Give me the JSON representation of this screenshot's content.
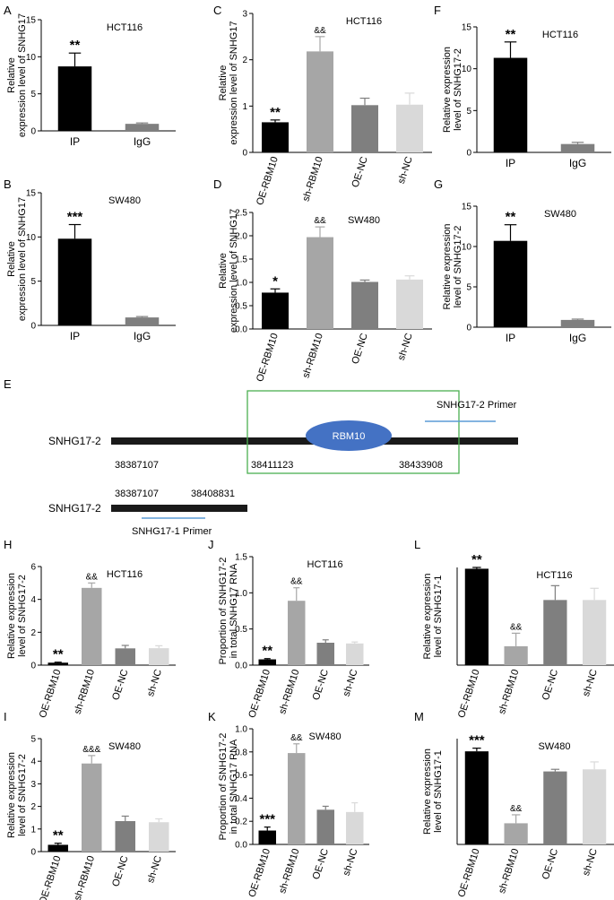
{
  "colors": {
    "black": "#000000",
    "light_gray": "#a6a6a6",
    "dark_gray": "#7f7f7f",
    "very_light_gray": "#d9d9d9",
    "green_box": "#4caf50",
    "rbm10_blue": "#4472c4",
    "primer_blue": "#5b9bd5",
    "gene_bar": "#1a1a1a"
  },
  "chart_data": [
    {
      "id": "A",
      "panel_label": "A",
      "type": "bar",
      "title": "HCT116",
      "ylabel": [
        "Relative",
        "expression level of SNHG17"
      ],
      "categories": [
        "IP",
        "IgG"
      ],
      "values": [
        8.7,
        0.95
      ],
      "errors": [
        1.8,
        0.12
      ],
      "colors": [
        "#000000",
        "#7f7f7f"
      ],
      "annotations": [
        "**",
        ""
      ],
      "ylim": [
        0,
        15
      ],
      "yticks": [
        "0",
        "5",
        "10",
        "15"
      ],
      "rotate_xticks": false
    },
    {
      "id": "B",
      "panel_label": "B",
      "type": "bar",
      "title": "SW480",
      "ylabel": [
        "Relative",
        "expression level of SNHG17"
      ],
      "categories": [
        "IP",
        "IgG"
      ],
      "values": [
        9.8,
        0.9
      ],
      "errors": [
        1.6,
        0.1
      ],
      "colors": [
        "#000000",
        "#7f7f7f"
      ],
      "annotations": [
        "***",
        ""
      ],
      "ylim": [
        0,
        15
      ],
      "yticks": [
        "0",
        "5",
        "10",
        "15"
      ],
      "rotate_xticks": false
    },
    {
      "id": "C",
      "panel_label": "C",
      "type": "bar",
      "title": "HCT116",
      "ylabel": [
        "Relative",
        "expression level of SNHG17"
      ],
      "categories": [
        "OE-RBM10",
        "sh-RBM10",
        "OE-NC",
        "sh-NC"
      ],
      "values": [
        0.65,
        2.18,
        1.02,
        1.03
      ],
      "errors": [
        0.05,
        0.32,
        0.15,
        0.25
      ],
      "colors": [
        "#000000",
        "#a6a6a6",
        "#7f7f7f",
        "#d9d9d9"
      ],
      "annotations": [
        "**",
        "&&",
        "",
        ""
      ],
      "ylim": [
        0,
        3
      ],
      "yticks": [
        "0",
        "1",
        "2",
        "3"
      ],
      "rotate_xticks": true
    },
    {
      "id": "D",
      "panel_label": "D",
      "type": "bar",
      "title": "SW480",
      "ylabel": [
        "Relative",
        "expression level of SNHG17"
      ],
      "categories": [
        "OE-RBM10",
        "sh-RBM10",
        "OE-NC",
        "sh-NC"
      ],
      "values": [
        0.78,
        1.97,
        1.01,
        1.06
      ],
      "errors": [
        0.08,
        0.22,
        0.04,
        0.08
      ],
      "colors": [
        "#000000",
        "#a6a6a6",
        "#7f7f7f",
        "#d9d9d9"
      ],
      "annotations": [
        "*",
        "&&",
        "",
        ""
      ],
      "ylim": [
        0,
        2.5
      ],
      "yticks": [
        "0.0",
        "0.5",
        "1.0",
        "1.5",
        "2.0",
        "2.5"
      ],
      "rotate_xticks": true
    },
    {
      "id": "F",
      "panel_label": "F",
      "type": "bar",
      "title": "HCT116",
      "ylabel": [
        "Relative expression",
        "level of SNHG17-2"
      ],
      "categories": [
        "IP",
        "IgG"
      ],
      "values": [
        11.3,
        1.0
      ],
      "errors": [
        1.9,
        0.2
      ],
      "colors": [
        "#000000",
        "#7f7f7f"
      ],
      "annotations": [
        "**",
        ""
      ],
      "ylim": [
        0,
        15
      ],
      "yticks": [
        "0",
        "5",
        "10",
        "15"
      ],
      "rotate_xticks": false
    },
    {
      "id": "G",
      "panel_label": "G",
      "type": "bar",
      "title": "SW480",
      "ylabel": [
        "Relative expression",
        "level of SNHG17-2"
      ],
      "categories": [
        "IP",
        "IgG"
      ],
      "values": [
        10.7,
        0.9
      ],
      "errors": [
        2.0,
        0.1
      ],
      "colors": [
        "#000000",
        "#7f7f7f"
      ],
      "annotations": [
        "**",
        ""
      ],
      "ylim": [
        0,
        15
      ],
      "yticks": [
        "0",
        "5",
        "10",
        "15"
      ],
      "rotate_xticks": false
    },
    {
      "id": "H",
      "panel_label": "H",
      "type": "bar",
      "title": "HCT116",
      "ylabel": [
        "Relative expression",
        "level of SNHG17-2"
      ],
      "categories": [
        "OE-RBM10",
        "sh-RBM10",
        "OE-NC",
        "sh-NC"
      ],
      "values": [
        0.15,
        4.7,
        1.02,
        1.03
      ],
      "errors": [
        0.03,
        0.3,
        0.18,
        0.15
      ],
      "colors": [
        "#000000",
        "#a6a6a6",
        "#7f7f7f",
        "#d9d9d9"
      ],
      "annotations": [
        "**",
        "&&",
        "",
        ""
      ],
      "ylim": [
        0,
        6
      ],
      "yticks": [
        "0",
        "2",
        "4",
        "6"
      ],
      "rotate_xticks": true
    },
    {
      "id": "I",
      "panel_label": "I",
      "type": "bar",
      "title": "SW480",
      "ylabel": [
        "Relative expression",
        "level of SNHG17-2"
      ],
      "categories": [
        "OE-RBM10",
        "sh-RBM10",
        "OE-NC",
        "sh-NC"
      ],
      "values": [
        0.3,
        3.9,
        1.35,
        1.3
      ],
      "errors": [
        0.07,
        0.35,
        0.22,
        0.15
      ],
      "colors": [
        "#000000",
        "#a6a6a6",
        "#7f7f7f",
        "#d9d9d9"
      ],
      "annotations": [
        "**",
        "&&&",
        "",
        ""
      ],
      "ylim": [
        0,
        5
      ],
      "yticks": [
        "0",
        "1",
        "2",
        "3",
        "4",
        "5"
      ],
      "rotate_xticks": true
    },
    {
      "id": "J",
      "panel_label": "J",
      "type": "bar",
      "title": "HCT116",
      "ylabel": [
        "Proportion of SNHG17-2",
        "in total SNHG17 RNA"
      ],
      "categories": [
        "OE-RBM10",
        "sh-RBM10",
        "OE-NC",
        "sh-NC"
      ],
      "values": [
        0.08,
        0.89,
        0.31,
        0.3
      ],
      "errors": [
        0.01,
        0.18,
        0.04,
        0.02
      ],
      "colors": [
        "#000000",
        "#a6a6a6",
        "#7f7f7f",
        "#d9d9d9"
      ],
      "annotations": [
        "**",
        "&&",
        "",
        ""
      ],
      "ylim": [
        0,
        1.5
      ],
      "yticks": [
        "0.0",
        "0.5",
        "1.0",
        "1.5"
      ],
      "rotate_xticks": true
    },
    {
      "id": "K",
      "panel_label": "K",
      "type": "bar",
      "title": "SW480",
      "ylabel": [
        "Proportion of SNHG17-2",
        "in total SNHG17 RNA"
      ],
      "categories": [
        "OE-RBM10",
        "sh-RBM10",
        "OE-NC",
        "sh-NC"
      ],
      "values": [
        0.12,
        0.79,
        0.3,
        0.28
      ],
      "errors": [
        0.03,
        0.08,
        0.03,
        0.08
      ],
      "colors": [
        "#000000",
        "#a6a6a6",
        "#7f7f7f",
        "#d9d9d9"
      ],
      "annotations": [
        "***",
        "&&",
        "",
        ""
      ],
      "ylim": [
        0,
        1.0
      ],
      "yticks": [
        "0.0",
        "0.2",
        "0.4",
        "0.6",
        "0.8",
        "1.0"
      ],
      "rotate_xticks": true
    },
    {
      "id": "L",
      "panel_label": "L",
      "type": "bar",
      "title": "HCT116",
      "ylabel": [
        "Relative expression",
        "level of SNHG17-1"
      ],
      "categories": [
        "OE-RBM10",
        "sh-RBM10",
        "OE-NC",
        "sh-NC"
      ],
      "values": [
        1.48,
        0.29,
        1.0,
        1.0
      ],
      "errors": [
        0.02,
        0.2,
        0.22,
        0.18
      ],
      "colors": [
        "#000000",
        "#a6a6a6",
        "#7f7f7f",
        "#d9d9d9"
      ],
      "annotations": [
        "**",
        "&&",
        "",
        ""
      ],
      "ylim": [
        0,
        1.5
      ],
      "yticks": [],
      "rotate_xticks": true
    },
    {
      "id": "M",
      "panel_label": "M",
      "type": "bar",
      "title": "SW480",
      "ylabel": [
        "Relative expression",
        "level of SNHG17-1"
      ],
      "categories": [
        "OE-RBM10",
        "sh-RBM10",
        "OE-NC",
        "sh-NC"
      ],
      "values": [
        0.88,
        0.2,
        0.69,
        0.71
      ],
      "errors": [
        0.03,
        0.08,
        0.02,
        0.07
      ],
      "colors": [
        "#000000",
        "#a6a6a6",
        "#7f7f7f",
        "#d9d9d9"
      ],
      "annotations": [
        "***",
        "&&",
        "",
        ""
      ],
      "ylim": [
        0,
        1.0
      ],
      "yticks": [],
      "rotate_xticks": true
    }
  ],
  "diagram_E": {
    "panel_label": "E",
    "row1_label": "SNHG17-2",
    "row2_label": "SNHG17-2",
    "rbm10_label": "RBM10",
    "primer2_label": "SNHG17-2 Primer",
    "primer1_label": "SNHG17-1 Primer",
    "coord_1": "38387107",
    "coord_2": "38411123",
    "coord_3": "38433908",
    "coord_4": "38387107",
    "coord_5": "38408831"
  }
}
